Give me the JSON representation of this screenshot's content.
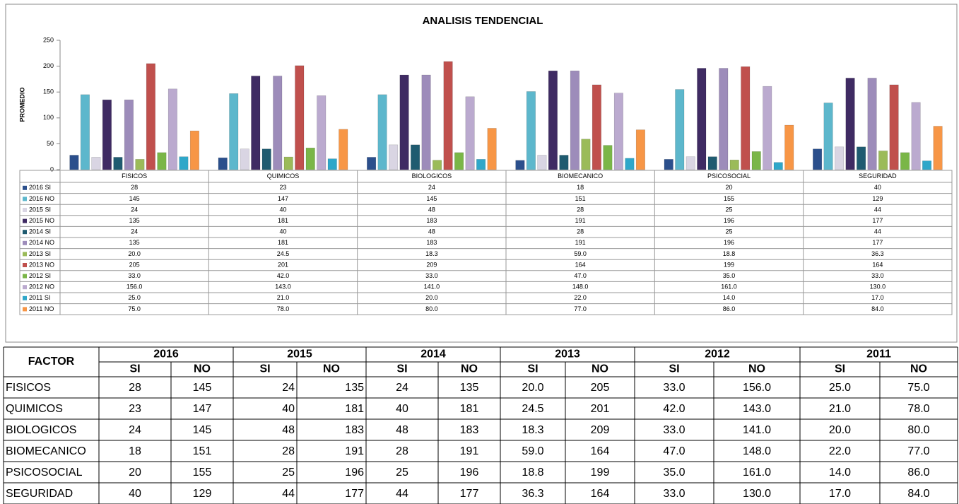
{
  "chart_data": {
    "type": "bar",
    "title": "ANALISIS TENDENCIAL",
    "y_label": "PROMEDIO",
    "categories": [
      "FISICOS",
      "QUIMICOS",
      "BIOLOGICOS",
      "BIOMECANICO",
      "PSICOSOCIAL",
      "SEGURIDAD"
    ],
    "ylim": [
      0,
      250
    ],
    "yticks": [
      0,
      50,
      100,
      150,
      200,
      250
    ],
    "grid": false,
    "series": [
      {
        "name": "2016 SI",
        "color": "#2b4f8c",
        "values": [
          28,
          23,
          24,
          18,
          20,
          40
        ]
      },
      {
        "name": "2016 NO",
        "color": "#5db7cc",
        "values": [
          145,
          147,
          145,
          151,
          155,
          129
        ]
      },
      {
        "name": "2015 SI",
        "color": "#d9d5e3",
        "values": [
          24,
          40,
          48,
          28,
          25,
          44
        ]
      },
      {
        "name": "2015 NO",
        "color": "#3f2b63",
        "values": [
          135,
          181,
          183,
          191,
          196,
          177
        ]
      },
      {
        "name": "2014 SI",
        "color": "#1f5b70",
        "values": [
          24,
          40,
          48,
          28,
          25,
          44
        ]
      },
      {
        "name": "2014 NO",
        "color": "#9d8cba",
        "values": [
          135,
          181,
          183,
          191,
          196,
          177
        ]
      },
      {
        "name": "2013 SI",
        "color": "#9bbb59",
        "values": [
          20.0,
          24.5,
          18.3,
          59.0,
          18.8,
          36.3
        ],
        "value_labels": [
          "20.0",
          "24.5",
          "18.3",
          "59.0",
          "18.8",
          "36.3"
        ]
      },
      {
        "name": "2013 NO",
        "color": "#c0504d",
        "values": [
          205,
          201,
          209,
          164,
          199,
          164
        ]
      },
      {
        "name": "2012 SI",
        "color": "#7ab648",
        "values": [
          33.0,
          42.0,
          33.0,
          47.0,
          35.0,
          33.0
        ],
        "value_labels": [
          "33.0",
          "42.0",
          "33.0",
          "47.0",
          "35.0",
          "33.0"
        ]
      },
      {
        "name": "2012 NO",
        "color": "#bbaacf",
        "values": [
          156.0,
          143.0,
          141.0,
          148.0,
          161.0,
          130.0
        ],
        "value_labels": [
          "156.0",
          "143.0",
          "141.0",
          "148.0",
          "161.0",
          "130.0"
        ]
      },
      {
        "name": "2011 SI",
        "color": "#2fa7c9",
        "values": [
          25.0,
          21.0,
          20.0,
          22.0,
          14.0,
          17.0
        ],
        "value_labels": [
          "25.0",
          "21.0",
          "20.0",
          "22.0",
          "14.0",
          "17.0"
        ]
      },
      {
        "name": "2011 NO",
        "color": "#f79646",
        "values": [
          75.0,
          78.0,
          80.0,
          77.0,
          86.0,
          84.0
        ],
        "value_labels": [
          "75.0",
          "78.0",
          "80.0",
          "77.0",
          "86.0",
          "84.0"
        ]
      }
    ]
  },
  "table": {
    "header": "FACTOR",
    "years": [
      "2016",
      "2015",
      "2014",
      "2013",
      "2012",
      "2011"
    ],
    "columns": [
      "SI",
      "NO"
    ],
    "rows": [
      [
        "FISICOS",
        "28",
        "145",
        "24",
        "135",
        "24",
        "135",
        "20.0",
        "205",
        "33.0",
        "156.0",
        "25.0",
        "75.0"
      ],
      [
        "QUIMICOS",
        "23",
        "147",
        "40",
        "181",
        "40",
        "181",
        "24.5",
        "201",
        "42.0",
        "143.0",
        "21.0",
        "78.0"
      ],
      [
        "BIOLOGICOS",
        "24",
        "145",
        "48",
        "183",
        "48",
        "183",
        "18.3",
        "209",
        "33.0",
        "141.0",
        "20.0",
        "80.0"
      ],
      [
        "BIOMECANICO",
        "18",
        "151",
        "28",
        "191",
        "28",
        "191",
        "59.0",
        "164",
        "47.0",
        "148.0",
        "22.0",
        "77.0"
      ],
      [
        "PSICOSOCIAL",
        "20",
        "155",
        "25",
        "196",
        "25",
        "196",
        "18.8",
        "199",
        "35.0",
        "161.0",
        "14.0",
        "86.0"
      ],
      [
        "SEGURIDAD",
        "40",
        "129",
        "44",
        "177",
        "44",
        "177",
        "36.3",
        "164",
        "33.0",
        "130.0",
        "17.0",
        "84.0"
      ]
    ]
  }
}
